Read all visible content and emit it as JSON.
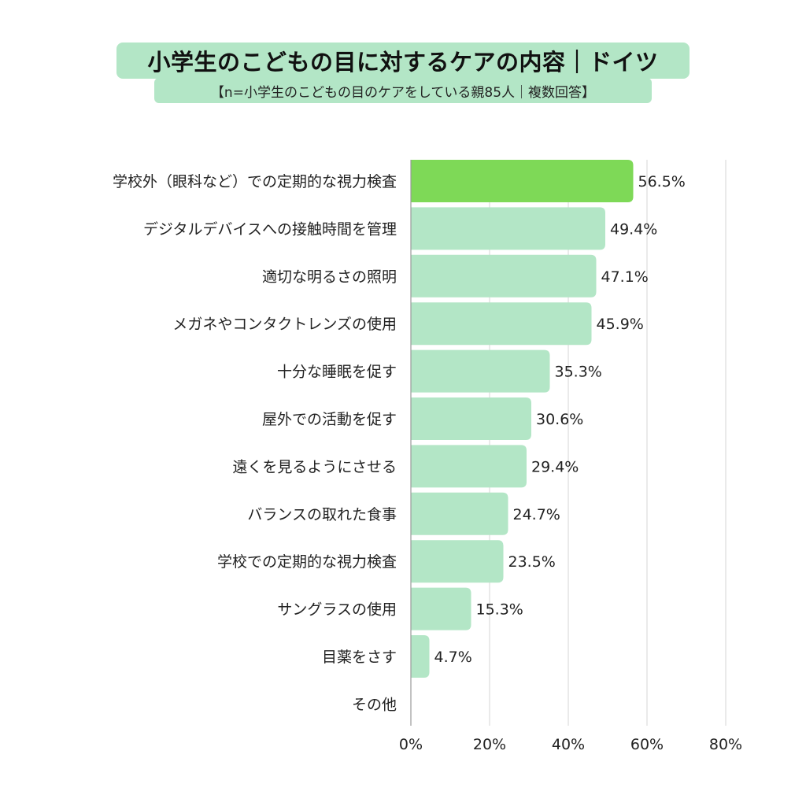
{
  "title": "小学生のこどもの目に対するケアの内容｜ドイツ",
  "subtitle": "【n=小学生のこどもの目のケアをしている親85人｜複数回答】",
  "colors": {
    "bar": "#b3e6c6",
    "highlight": "#7ed957",
    "grid": "#d4d4d4",
    "header_bg": "#b3e6c6",
    "text": "#222222"
  },
  "chart_data": {
    "type": "bar",
    "orientation": "horizontal",
    "categories": [
      "学校外（眼科など）での定期的な視力検査",
      "デジタルデバイスへの接触時間を管理",
      "適切な明るさの照明",
      "メガネやコンタクトレンズの使用",
      "十分な睡眠を促す",
      "屋外での活動を促す",
      "遠くを見るようにさせる",
      "バランスの取れた食事",
      "学校での定期的な視力検査",
      "サングラスの使用",
      "目薬をさす",
      "その他"
    ],
    "values": [
      56.5,
      49.4,
      47.1,
      45.9,
      35.3,
      30.6,
      29.4,
      24.7,
      23.5,
      15.3,
      4.7,
      null
    ],
    "value_labels": [
      "56.5%",
      "49.4%",
      "47.1%",
      "45.9%",
      "35.3%",
      "30.6%",
      "29.4%",
      "24.7%",
      "23.5%",
      "15.3%",
      "4.7%",
      ""
    ],
    "highlight_index": 0,
    "xlim": [
      0,
      80
    ],
    "xticks": [
      "0%",
      "20%",
      "40%",
      "60%",
      "80%"
    ],
    "grid": "vertical",
    "legend": "none"
  }
}
